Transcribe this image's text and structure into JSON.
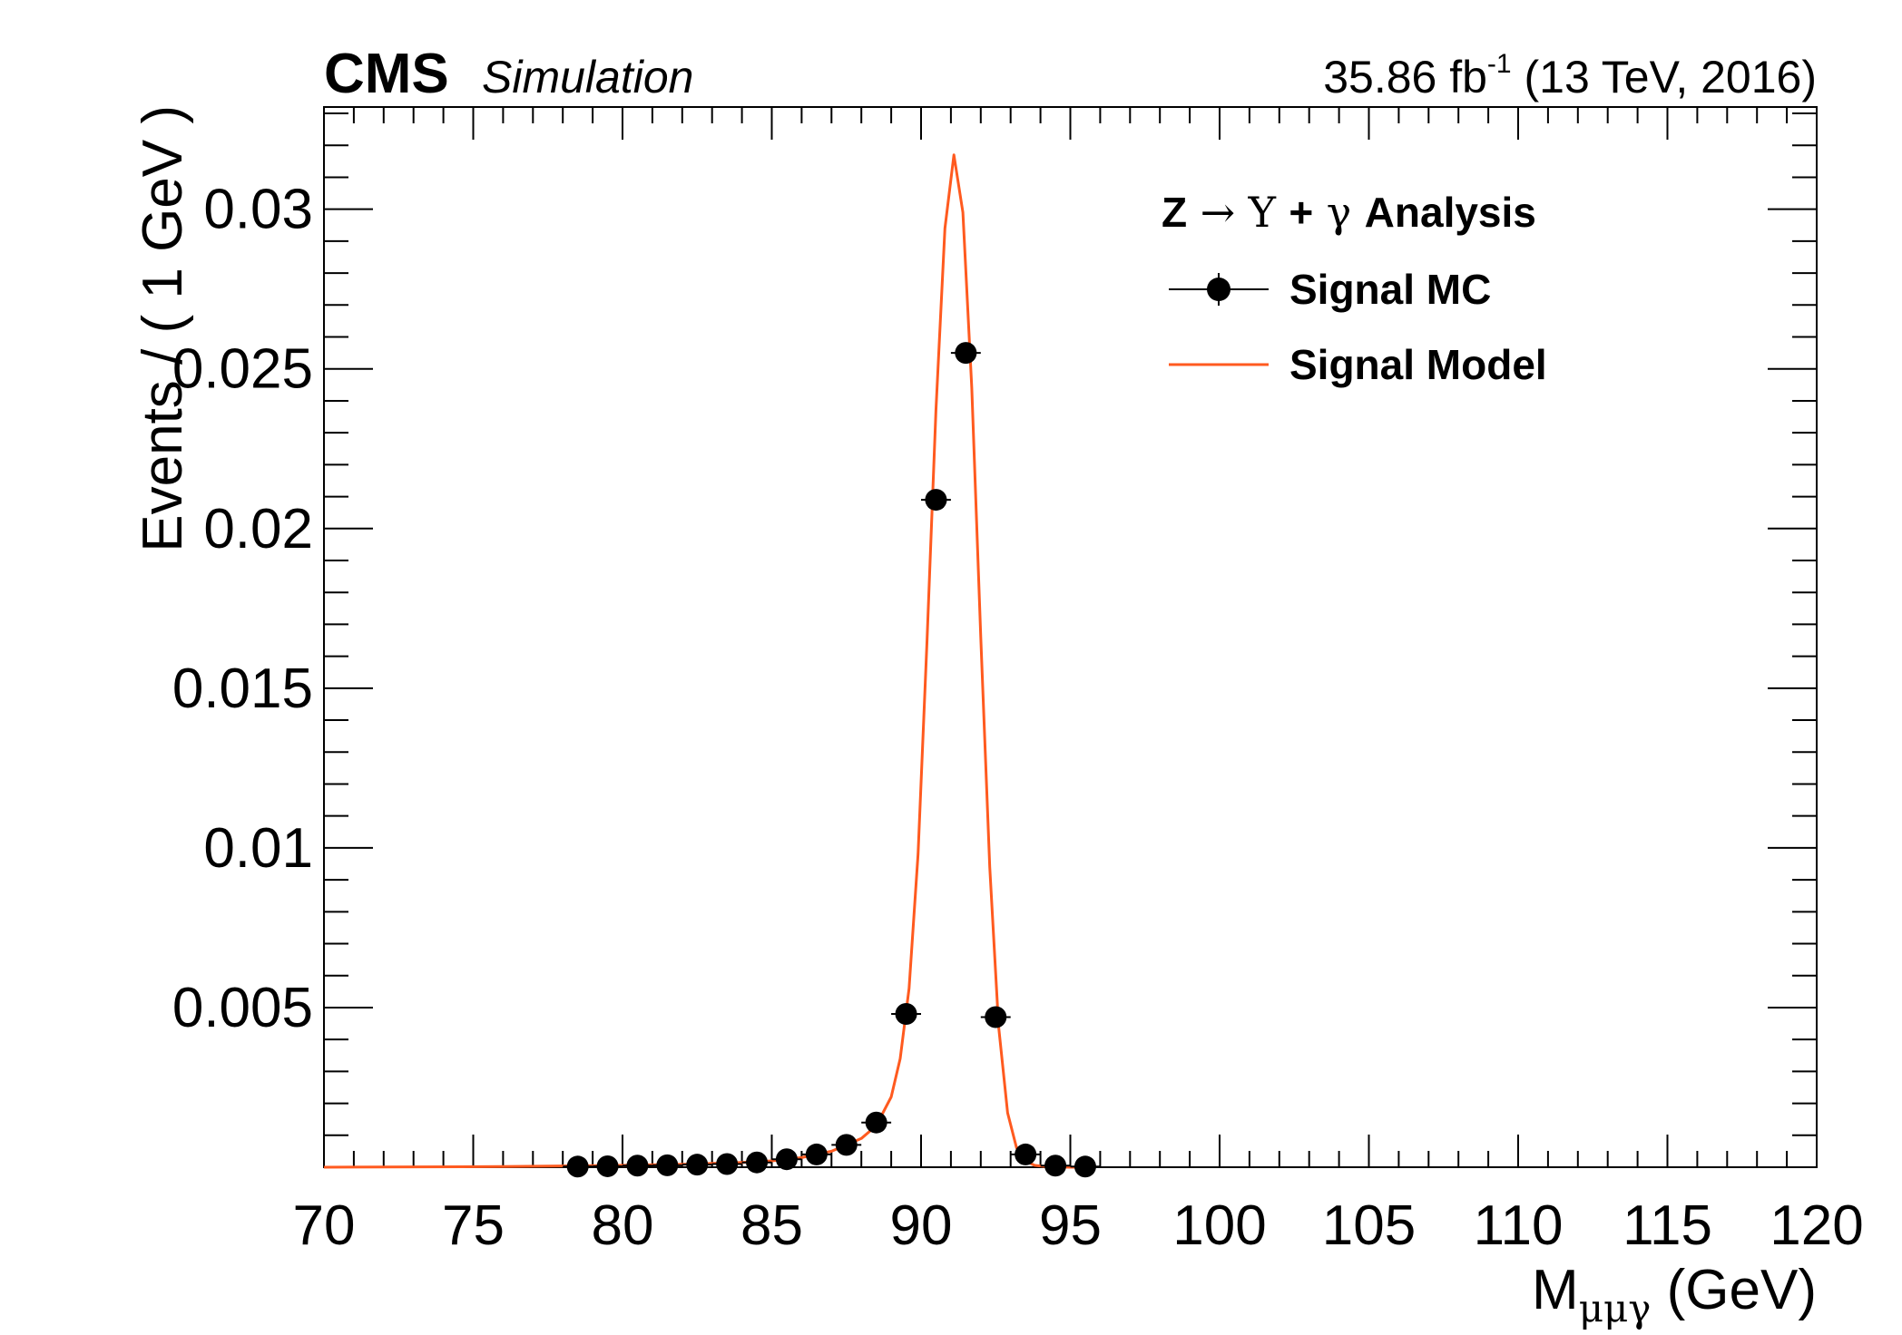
{
  "header": {
    "experiment": "CMS",
    "status": "Simulation",
    "lumi_value": "35.86 fb",
    "lumi_exponent": "-1",
    "lumi_suffix": " (13 TeV, 2016)"
  },
  "legend": {
    "title_parts": [
      "Z",
      "→",
      "Υ",
      "+",
      "γ",
      "Analysis"
    ],
    "position": "top-right"
  },
  "colors": {
    "model": "#ff5a1f",
    "points": "#000000",
    "axes": "#000000"
  },
  "chart_data": {
    "type": "scatter",
    "title": "",
    "xlabel_main": "M",
    "xlabel_sub": "μμγ",
    "xlabel_suffix": " (GeV)",
    "ylabel": "Events / ( 1 GeV )",
    "xlim": [
      70,
      120
    ],
    "ylim": [
      0,
      0.0332
    ],
    "x_major_ticks": [
      70,
      75,
      80,
      85,
      90,
      95,
      100,
      105,
      110,
      115,
      120
    ],
    "x_tick_labels": [
      "70",
      "75",
      "80",
      "85",
      "90",
      "95",
      "100",
      "105",
      "110",
      "115",
      "120"
    ],
    "y_major_ticks": [
      0.005,
      0.01,
      0.015,
      0.02,
      0.025,
      0.03
    ],
    "y_tick_labels": [
      "0.005",
      "0.01",
      "0.015",
      "0.02",
      "0.025",
      "0.03"
    ],
    "grid": false,
    "series": [
      {
        "name": "Signal MC",
        "kind": "points",
        "x": [
          78.5,
          79.5,
          80.5,
          81.5,
          82.5,
          83.5,
          84.5,
          85.5,
          86.5,
          87.5,
          88.5,
          89.5,
          90.5,
          91.5,
          92.5,
          93.5,
          94.5,
          95.5
        ],
        "y": [
          2e-05,
          3e-05,
          5e-05,
          6e-05,
          8e-05,
          0.0001,
          0.00015,
          0.00025,
          0.0004,
          0.0007,
          0.0014,
          0.0048,
          0.0209,
          0.0255,
          0.0047,
          0.0004,
          5e-05,
          2e-05
        ],
        "xerr": 0.5
      },
      {
        "name": "Signal Model",
        "kind": "line",
        "x": [
          70,
          76,
          78,
          80,
          82,
          84,
          85,
          86,
          87,
          87.5,
          88,
          88.5,
          89,
          89.3,
          89.6,
          89.9,
          90.2,
          90.5,
          90.8,
          91.1,
          91.4,
          91.7,
          92.0,
          92.3,
          92.6,
          92.9,
          93.2,
          93.5,
          93.8,
          94.2,
          94.6,
          95.0,
          95.5
        ],
        "y": [
          0.0,
          2e-05,
          4e-05,
          6e-05,
          9e-05,
          0.00015,
          0.0002,
          0.0003,
          0.0005,
          0.0007,
          0.0009,
          0.0013,
          0.0022,
          0.0034,
          0.0056,
          0.0098,
          0.0165,
          0.0237,
          0.0294,
          0.0317,
          0.0299,
          0.0244,
          0.0166,
          0.0094,
          0.0044,
          0.0017,
          0.0006,
          0.0002,
          6e-05,
          2e-05,
          5e-06,
          0.0,
          0.0
        ]
      }
    ]
  }
}
